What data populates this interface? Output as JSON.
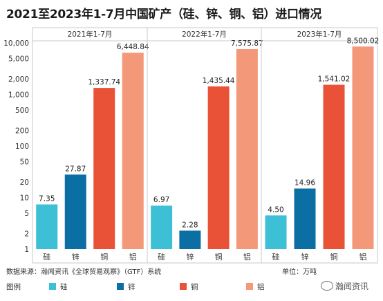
{
  "title": "2021至2023年1-7月中国矿产（硅、锌、铜、铝）进口情况",
  "source": "数据来源：瀚闻资讯《全球贸易观察》（GTF）系统",
  "unit": "单位：万吨",
  "watermark": "瀚闻资讯",
  "legend": {
    "title": "图例",
    "items": [
      {
        "label": "硅",
        "color": "#3dbfd6"
      },
      {
        "label": "锌",
        "color": "#0b6fa3"
      },
      {
        "label": "铜",
        "color": "#ea5237"
      },
      {
        "label": "铝",
        "color": "#f4987a"
      }
    ]
  },
  "chart_data": {
    "type": "bar",
    "y_scale": "log",
    "y_ticks": [
      "1",
      "2",
      "5",
      "10",
      "20",
      "50",
      "100",
      "200",
      "500",
      "1,000",
      "2,000",
      "5,000",
      "10,000"
    ],
    "ylim": [
      1,
      10000
    ],
    "categories": [
      "硅",
      "锌",
      "铜",
      "铝"
    ],
    "colors": [
      "#3dbfd6",
      "#0b6fa3",
      "#ea5237",
      "#f4987a"
    ],
    "panels": [
      {
        "title": "2021年1-7月",
        "values": [
          7.35,
          27.87,
          1337.74,
          6448.84
        ],
        "labels": [
          "7.35",
          "27.87",
          "1,337.74",
          "6,448.84"
        ]
      },
      {
        "title": "2022年1-7月",
        "values": [
          6.97,
          2.28,
          1435.44,
          7575.87
        ],
        "labels": [
          "6.97",
          "2.28",
          "1,435.44",
          "7,575.87"
        ]
      },
      {
        "title": "2023年1-7月",
        "values": [
          4.5,
          14.96,
          1541.02,
          8500.02
        ],
        "labels": [
          "4.50",
          "14.96",
          "1,541.02",
          "8,500.02"
        ]
      }
    ]
  }
}
